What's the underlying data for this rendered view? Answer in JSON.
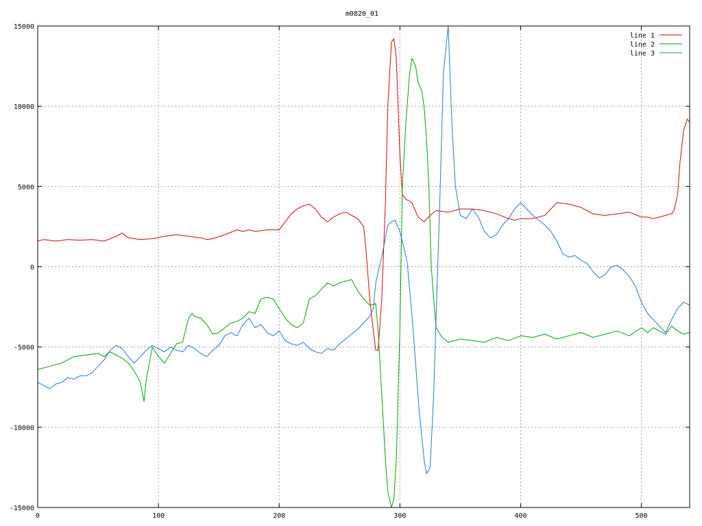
{
  "chart_data": {
    "type": "line",
    "title": "m0820_01",
    "xlabel": "",
    "ylabel": "",
    "xlim": [
      0,
      540
    ],
    "ylim": [
      -15000,
      15000
    ],
    "xticks": [
      0,
      100,
      200,
      300,
      400,
      500
    ],
    "yticks": [
      -15000,
      -10000,
      -5000,
      0,
      5000,
      10000,
      15000
    ],
    "grid": true,
    "legend_position": "top-right",
    "series": [
      {
        "name": "line 1",
        "color": "#e00000",
        "x": [
          0,
          5,
          15,
          25,
          35,
          45,
          55,
          65,
          70,
          75,
          85,
          95,
          105,
          115,
          125,
          135,
          140,
          145,
          155,
          165,
          170,
          175,
          180,
          190,
          200,
          205,
          210,
          215,
          220,
          225,
          230,
          235,
          240,
          245,
          250,
          255,
          260,
          265,
          270,
          272,
          275,
          278,
          280,
          282,
          285,
          288,
          290,
          293,
          295,
          297,
          300,
          302,
          305,
          310,
          315,
          320,
          325,
          330,
          340,
          350,
          360,
          370,
          380,
          390,
          395,
          400,
          410,
          420,
          430,
          440,
          450,
          460,
          470,
          480,
          490,
          500,
          505,
          510,
          515,
          520,
          525,
          527,
          530,
          532,
          535,
          538,
          540
        ],
        "y": [
          1600,
          1700,
          1600,
          1700,
          1650,
          1700,
          1600,
          1900,
          2100,
          1800,
          1700,
          1750,
          1900,
          2000,
          1900,
          1800,
          1700,
          1750,
          2000,
          2300,
          2200,
          2300,
          2200,
          2300,
          2300,
          2800,
          3300,
          3600,
          3800,
          3900,
          3600,
          3100,
          2800,
          3100,
          3300,
          3400,
          3200,
          3000,
          2500,
          1000,
          -2000,
          -4000,
          -5200,
          -5200,
          -2000,
          4000,
          10000,
          14000,
          14200,
          13000,
          7000,
          4500,
          4200,
          4000,
          3100,
          2800,
          3200,
          3500,
          3400,
          3600,
          3600,
          3500,
          3300,
          3000,
          2900,
          3000,
          3000,
          3200,
          4000,
          3900,
          3700,
          3300,
          3200,
          3300,
          3400,
          3100,
          3100,
          3000,
          3100,
          3200,
          3300,
          3500,
          4500,
          6500,
          8500,
          9200,
          9000
        ]
      },
      {
        "name": "line 2",
        "color": "#00a000",
        "x": [
          0,
          10,
          20,
          30,
          40,
          50,
          55,
          60,
          65,
          70,
          75,
          80,
          85,
          88,
          90,
          95,
          100,
          105,
          110,
          115,
          120,
          125,
          128,
          130,
          135,
          140,
          145,
          150,
          155,
          160,
          165,
          170,
          175,
          180,
          185,
          190,
          195,
          200,
          205,
          210,
          215,
          220,
          225,
          230,
          235,
          240,
          245,
          250,
          255,
          260,
          265,
          270,
          275,
          280,
          282,
          285,
          288,
          290,
          293,
          295,
          297,
          300,
          302,
          305,
          308,
          310,
          313,
          315,
          318,
          320,
          322,
          324,
          326,
          328,
          330,
          335,
          340,
          350,
          360,
          370,
          380,
          390,
          400,
          410,
          420,
          430,
          440,
          450,
          460,
          470,
          480,
          490,
          500,
          505,
          510,
          515,
          520,
          525,
          530,
          535,
          540
        ],
        "y": [
          -6400,
          -6200,
          -6000,
          -5600,
          -5500,
          -5400,
          -5600,
          -5300,
          -5500,
          -5700,
          -6000,
          -6500,
          -7200,
          -8400,
          -7000,
          -5000,
          -5600,
          -6000,
          -5400,
          -4800,
          -4700,
          -3200,
          -2900,
          -3100,
          -3200,
          -3600,
          -4200,
          -4100,
          -3800,
          -3500,
          -3400,
          -3200,
          -2800,
          -2900,
          -2000,
          -1900,
          -2000,
          -2600,
          -3200,
          -3600,
          -3800,
          -3500,
          -2000,
          -1800,
          -1400,
          -1000,
          -1200,
          -1000,
          -900,
          -800,
          -1500,
          -2000,
          -2400,
          -2300,
          -4000,
          -8000,
          -12000,
          -14000,
          -15000,
          -14500,
          -12000,
          -4000,
          5000,
          9000,
          12000,
          13000,
          12500,
          11500,
          11000,
          10000,
          8000,
          5000,
          0,
          -2000,
          -3800,
          -4400,
          -4700,
          -4500,
          -4600,
          -4700,
          -4400,
          -4600,
          -4300,
          -4400,
          -4200,
          -4500,
          -4300,
          -4100,
          -4400,
          -4200,
          -4000,
          -4300,
          -3800,
          -4100,
          -3800,
          -4000,
          -4200,
          -3700,
          -4000,
          -4200,
          -4100
        ],
        "y_overrides_note": ""
      },
      {
        "name": "line 3",
        "color": "#1e78d2",
        "x": [
          0,
          5,
          10,
          15,
          20,
          25,
          30,
          35,
          40,
          45,
          50,
          55,
          60,
          65,
          70,
          75,
          80,
          85,
          90,
          95,
          100,
          105,
          110,
          115,
          120,
          125,
          130,
          135,
          140,
          145,
          150,
          155,
          160,
          165,
          170,
          175,
          180,
          185,
          190,
          195,
          200,
          205,
          210,
          215,
          220,
          225,
          230,
          235,
          240,
          245,
          250,
          255,
          260,
          265,
          270,
          275,
          278,
          280,
          283,
          285,
          288,
          290,
          293,
          296,
          300,
          303,
          306,
          310,
          313,
          316,
          320,
          322,
          325,
          328,
          330,
          333,
          336,
          340,
          343,
          346,
          350,
          355,
          360,
          365,
          370,
          375,
          380,
          385,
          390,
          395,
          400,
          405,
          410,
          415,
          420,
          425,
          430,
          435,
          440,
          445,
          450,
          455,
          460,
          465,
          470,
          475,
          480,
          485,
          490,
          495,
          500,
          505,
          510,
          515,
          520,
          525,
          530,
          535,
          540
        ],
        "y": [
          -7200,
          -7400,
          -7600,
          -7300,
          -7200,
          -6900,
          -7000,
          -6800,
          -6800,
          -6600,
          -6200,
          -5800,
          -5200,
          -4900,
          -5100,
          -5600,
          -6000,
          -5600,
          -5200,
          -4900,
          -5100,
          -5300,
          -5000,
          -5200,
          -5300,
          -4900,
          -5100,
          -5400,
          -5600,
          -5200,
          -4900,
          -4300,
          -4100,
          -4300,
          -3600,
          -3200,
          -3800,
          -3600,
          -4100,
          -4300,
          -4000,
          -4600,
          -4800,
          -4900,
          -4700,
          -5100,
          -5300,
          -5400,
          -5100,
          -5200,
          -4800,
          -4500,
          -4200,
          -3900,
          -3500,
          -3100,
          -2600,
          -1000,
          0,
          600,
          1800,
          2600,
          2800,
          2900,
          2200,
          1300,
          300,
          -3000,
          -6000,
          -9000,
          -12000,
          -12900,
          -12500,
          -8000,
          -3000,
          4000,
          12000,
          15000,
          9000,
          5000,
          3200,
          3000,
          3600,
          3100,
          2200,
          1800,
          2000,
          2600,
          3000,
          3600,
          4000,
          3600,
          3200,
          2900,
          2600,
          2200,
          1600,
          800,
          600,
          700,
          400,
          200,
          -300,
          -700,
          -500,
          0,
          100,
          -200,
          -600,
          -1200,
          -2200,
          -2900,
          -3300,
          -3700,
          -4100,
          -3300,
          -2600,
          -2200,
          -2400
        ],
        "y_overrides_note": ""
      }
    ]
  }
}
